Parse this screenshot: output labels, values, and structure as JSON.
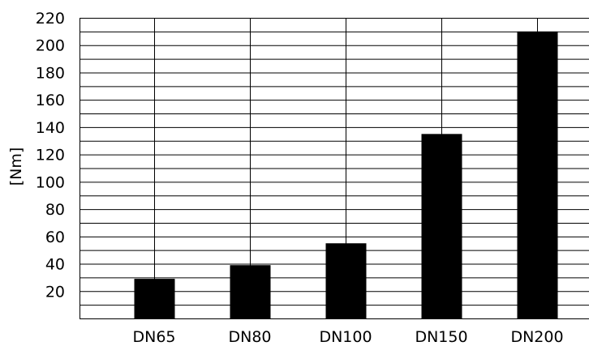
{
  "chart_data": {
    "type": "bar",
    "categories": [
      "DN65",
      "DN80",
      "DN100",
      "DN150",
      "DN200"
    ],
    "values": [
      29,
      39,
      55,
      135,
      210
    ],
    "title": "",
    "xlabel": "",
    "ylabel": "[Nm]",
    "ylim": [
      0,
      220
    ],
    "yticks": [
      20,
      40,
      60,
      80,
      100,
      120,
      140,
      160,
      180,
      200,
      220
    ],
    "minor_grid_step": 10,
    "grid": true,
    "bar_color": "#000000"
  }
}
